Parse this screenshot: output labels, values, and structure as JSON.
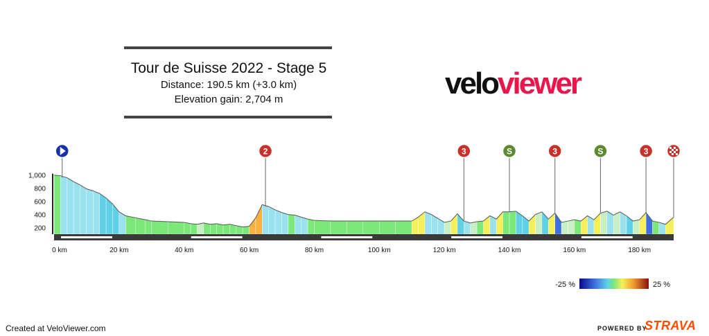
{
  "header": {
    "title": "Tour de Suisse 2022 - Stage 5",
    "distance_line": "Distance: 190.5 km (+3.0 km)",
    "elevation_line": "Elevation gain: 2,704 m"
  },
  "logo": {
    "part1": "velo",
    "part2": "viewer",
    "color2": "#e8164b"
  },
  "chart_data": {
    "type": "area",
    "title": "Tour de Suisse 2022 - Stage 5",
    "xlabel": "",
    "ylabel": "",
    "xlim": [
      0,
      190.5
    ],
    "ylim": [
      100,
      1050
    ],
    "x_ticks": [
      0,
      20,
      40,
      60,
      80,
      100,
      120,
      140,
      160,
      180
    ],
    "x_tick_labels": [
      "0 km",
      "20 km",
      "40 km",
      "60 km",
      "80 km",
      "100 km",
      "120 km",
      "140 km",
      "160 km",
      "180 km"
    ],
    "y_ticks": [
      200,
      400,
      600,
      800,
      1000
    ],
    "y_tick_labels": [
      "200",
      "400",
      "600",
      "800",
      "1,000"
    ],
    "x": [
      0,
      2,
      4,
      6,
      8,
      10,
      12,
      14,
      16,
      18,
      20,
      22,
      25,
      28,
      30,
      35,
      40,
      42,
      44,
      46,
      48,
      50,
      52,
      54,
      56,
      58,
      60,
      62,
      64,
      66,
      68,
      70,
      72,
      74,
      76,
      78,
      80,
      85,
      90,
      95,
      100,
      105,
      110,
      112,
      114,
      116,
      118,
      120,
      122,
      124,
      126,
      128,
      130,
      132,
      134,
      136,
      138,
      140,
      142,
      144,
      146,
      148,
      150,
      152,
      154,
      156,
      158,
      160,
      162,
      164,
      166,
      168,
      170,
      172,
      174,
      176,
      178,
      180,
      182,
      184,
      186,
      188,
      190.5
    ],
    "elevation": [
      1000,
      990,
      960,
      900,
      850,
      790,
      760,
      720,
      650,
      560,
      440,
      380,
      350,
      320,
      300,
      290,
      280,
      260,
      250,
      270,
      250,
      260,
      240,
      250,
      230,
      210,
      220,
      350,
      550,
      520,
      470,
      430,
      400,
      390,
      360,
      330,
      310,
      300,
      300,
      300,
      300,
      300,
      300,
      360,
      440,
      400,
      340,
      280,
      300,
      410,
      300,
      270,
      290,
      300,
      380,
      330,
      440,
      440,
      450,
      380,
      300,
      400,
      440,
      330,
      420,
      280,
      300,
      320,
      300,
      380,
      320,
      420,
      450,
      390,
      440,
      380,
      300,
      320,
      430,
      300,
      280,
      250,
      360
    ],
    "markers": [
      {
        "km": 2.5,
        "type": "start",
        "label": "",
        "color": "#1a2fa8"
      },
      {
        "km": 65,
        "type": "climb",
        "label": "2",
        "color": "#c8302a"
      },
      {
        "km": 126,
        "type": "climb",
        "label": "3",
        "color": "#c8302a"
      },
      {
        "km": 140,
        "type": "sprint",
        "label": "S",
        "color": "#5d8a2f"
      },
      {
        "km": 154,
        "type": "climb",
        "label": "3",
        "color": "#c8302a"
      },
      {
        "km": 168,
        "type": "sprint",
        "label": "S",
        "color": "#5d8a2f"
      },
      {
        "km": 182,
        "type": "climb",
        "label": "3",
        "color": "#c8302a"
      },
      {
        "km": 190.5,
        "type": "finish",
        "label": "",
        "color": "#c8302a"
      }
    ],
    "gradient_legend": {
      "min_label": "-25 %",
      "max_label": "25 %"
    }
  },
  "footer": {
    "created": "Created at VeloViewer.com",
    "powered": "POWERED BY",
    "strava": "STRAVA"
  }
}
